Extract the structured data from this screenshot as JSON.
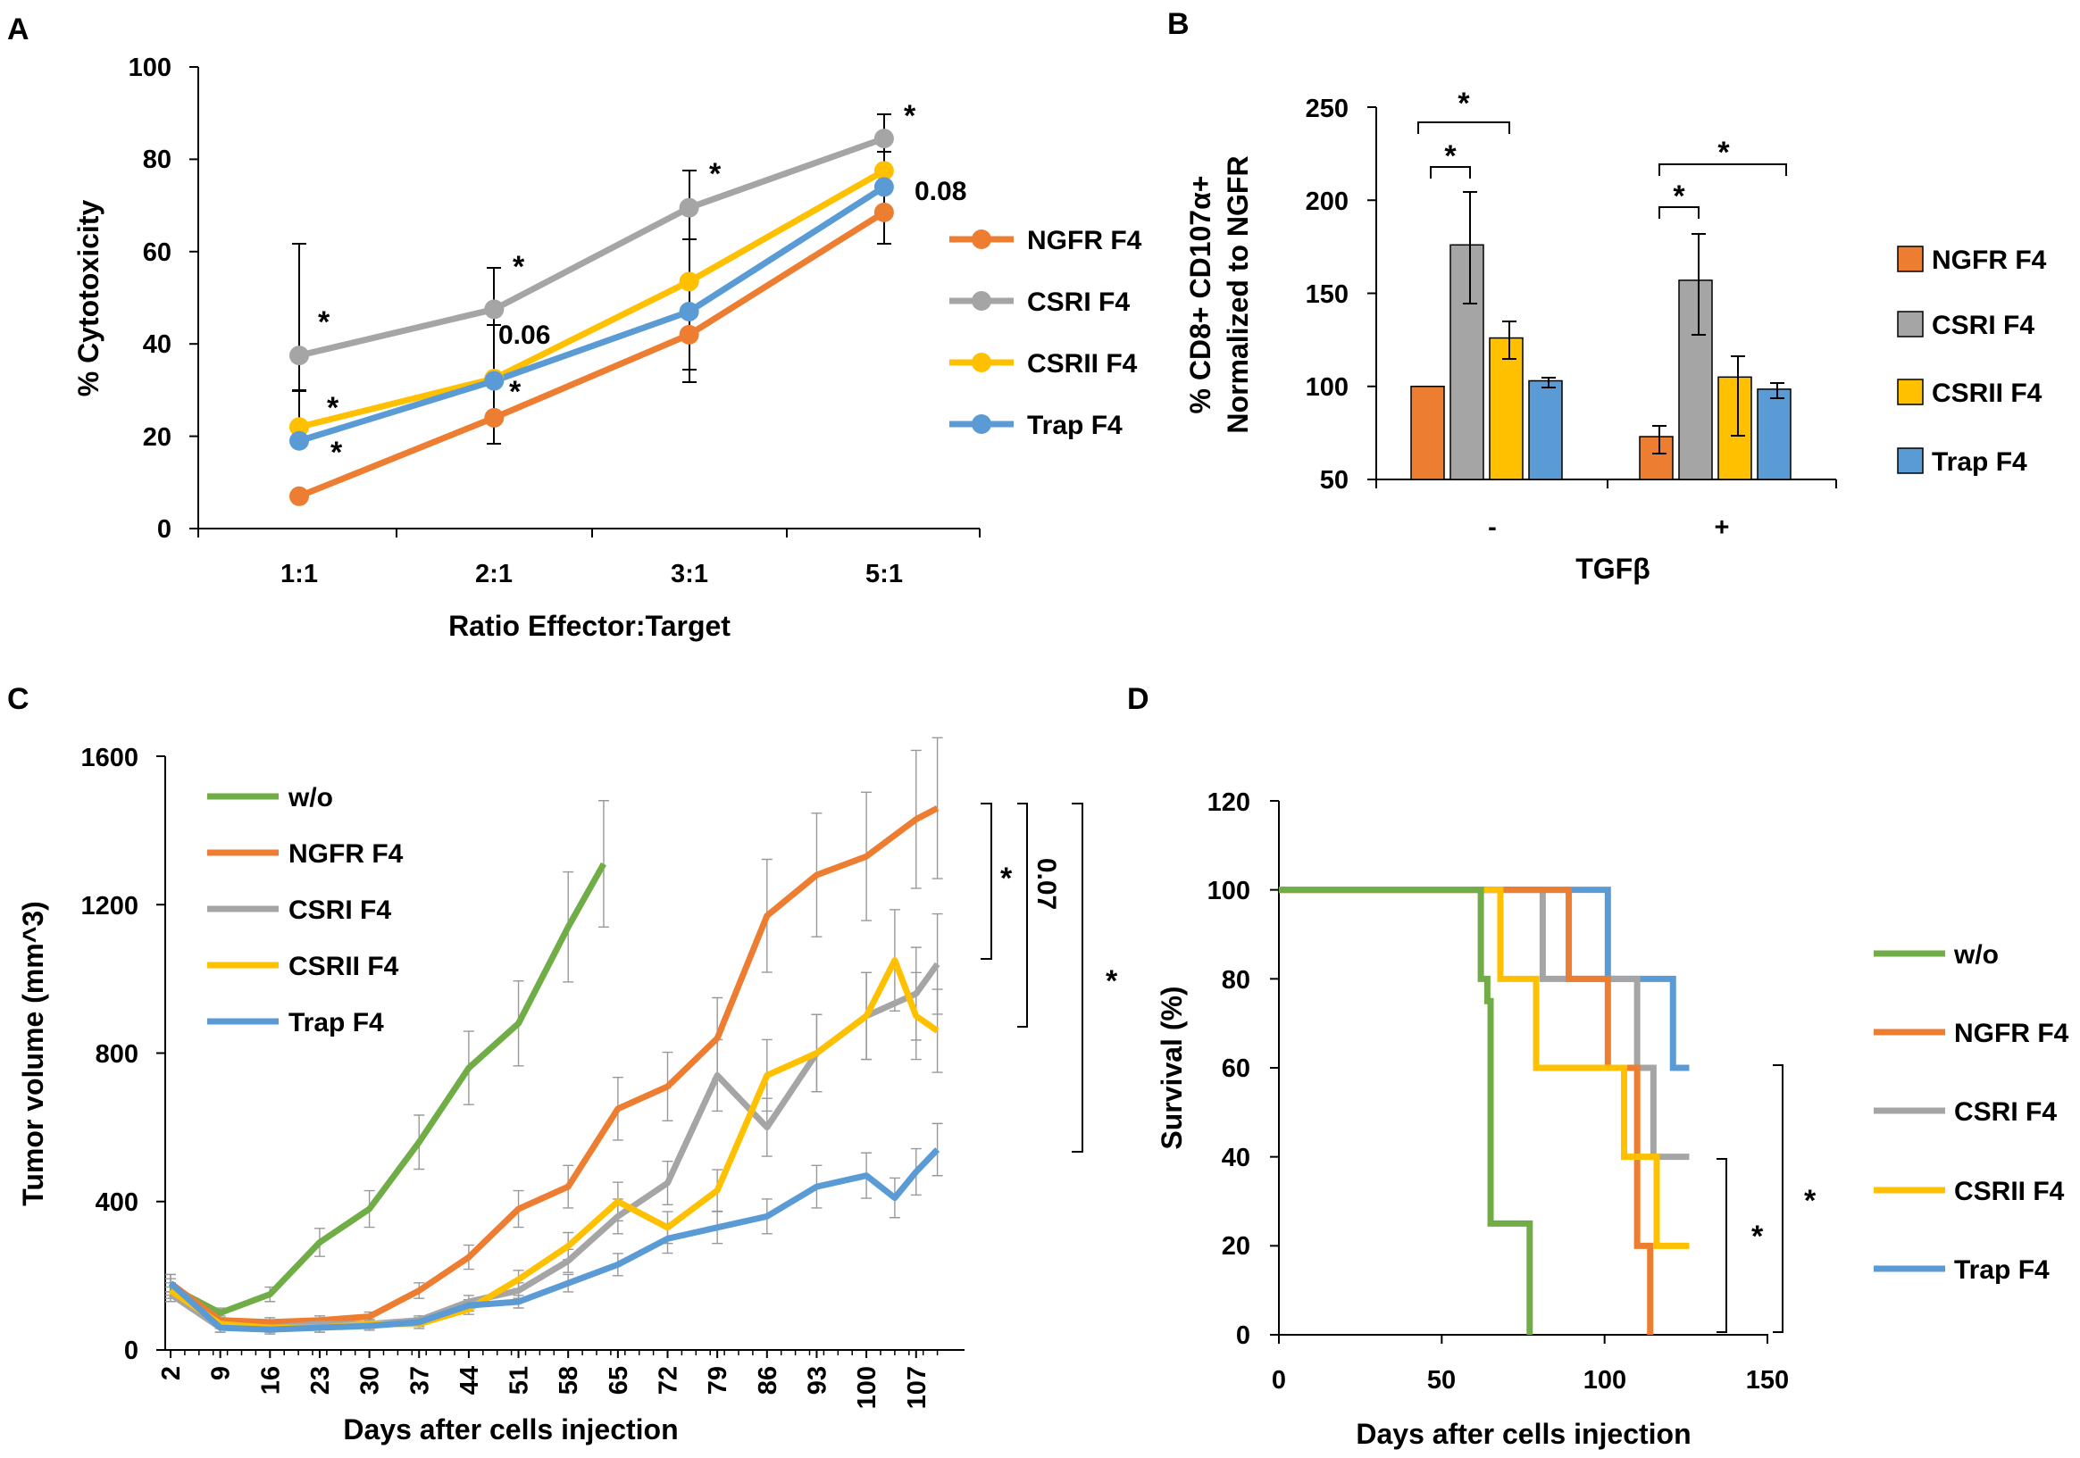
{
  "colors": {
    "ngfr": "#ED7D31",
    "csri": "#A5A5A5",
    "csrii": "#FFC000",
    "trap": "#5B9BD5",
    "wo": "#70AD47"
  },
  "chart_data": [
    {
      "panel": "A",
      "type": "line",
      "xlabel": "Ratio Effector:Target",
      "ylabel": "% Cytotoxicity",
      "categories": [
        "1:1",
        "2:1",
        "3:1",
        "5:1"
      ],
      "ylim": [
        0,
        100
      ],
      "yticks": [
        "0",
        "20",
        "40",
        "60",
        "80",
        "100"
      ],
      "series": [
        {
          "name": "NGFR F4",
          "values": [
            7,
            24,
            42,
            68.5
          ]
        },
        {
          "name": "CSRI F4",
          "values": [
            37.5,
            47.5,
            69.5,
            84.5
          ]
        },
        {
          "name": "CSRII F4",
          "values": [
            22,
            32.5,
            53.5,
            77.5
          ]
        },
        {
          "name": "Trap F4",
          "values": [
            19,
            32,
            47,
            74
          ]
        }
      ],
      "annotations": [
        "*",
        "*",
        "*",
        "*",
        "*",
        "0.06",
        "*",
        "0.08",
        "*"
      ]
    },
    {
      "panel": "B",
      "type": "bar",
      "xlabel": "TGFβ",
      "ylabel_line1": "% CD8+ CD107α+",
      "ylabel_line2": "Normalized to NGFR",
      "categories": [
        "-",
        "+"
      ],
      "ylim": [
        50,
        250
      ],
      "yticks": [
        "50",
        "100",
        "150",
        "200",
        "250"
      ],
      "series": [
        {
          "name": "NGFR F4",
          "values": [
            100,
            73
          ]
        },
        {
          "name": "CSRI F4",
          "values": [
            176,
            157
          ]
        },
        {
          "name": "CSRII F4",
          "values": [
            126,
            105
          ]
        },
        {
          "name": "Trap F4",
          "values": [
            103,
            98.5
          ]
        }
      ],
      "annotations": [
        "*",
        "*",
        "*",
        "*"
      ]
    },
    {
      "panel": "C",
      "type": "line",
      "xlabel": "Days after cells injection",
      "ylabel": "Tumor volume (mm^3)",
      "xticks": [
        "2",
        "9",
        "16",
        "23",
        "30",
        "37",
        "44",
        "51",
        "58",
        "65",
        "72",
        "79",
        "86",
        "93",
        "100",
        "107"
      ],
      "ylim": [
        0,
        1600
      ],
      "yticks": [
        "0",
        "400",
        "800",
        "1200",
        "1600"
      ],
      "series": [
        {
          "name": "w/o",
          "days": [
            2,
            9,
            16,
            23,
            30,
            37,
            44,
            51,
            58,
            63
          ],
          "values": [
            170,
            100,
            150,
            290,
            380,
            560,
            760,
            880,
            1140,
            1310
          ]
        },
        {
          "name": "NGFR F4",
          "days": [
            2,
            9,
            16,
            23,
            30,
            37,
            44,
            51,
            58,
            65,
            72,
            79,
            86,
            93,
            100,
            107,
            110
          ],
          "values": [
            180,
            80,
            75,
            80,
            90,
            160,
            250,
            380,
            440,
            650,
            710,
            840,
            1170,
            1280,
            1330,
            1430,
            1460
          ]
        },
        {
          "name": "CSRI F4",
          "days": [
            2,
            9,
            16,
            23,
            30,
            37,
            44,
            51,
            58,
            65,
            72,
            79,
            86,
            93,
            100,
            107,
            110
          ],
          "values": [
            150,
            60,
            60,
            70,
            70,
            80,
            130,
            160,
            240,
            360,
            450,
            740,
            600,
            800,
            900,
            960,
            1040
          ]
        },
        {
          "name": "CSRII F4",
          "days": [
            2,
            9,
            16,
            23,
            30,
            37,
            44,
            51,
            58,
            65,
            72,
            79,
            86,
            93,
            100,
            104,
            107,
            110
          ],
          "values": [
            160,
            70,
            60,
            60,
            70,
            70,
            110,
            190,
            280,
            400,
            330,
            430,
            740,
            800,
            900,
            1050,
            900,
            860
          ]
        },
        {
          "name": "Trap F4",
          "days": [
            2,
            9,
            16,
            23,
            30,
            37,
            44,
            51,
            58,
            65,
            72,
            79,
            86,
            93,
            100,
            104,
            107,
            110
          ],
          "values": [
            180,
            60,
            55,
            60,
            65,
            75,
            120,
            130,
            180,
            230,
            300,
            330,
            360,
            440,
            470,
            410,
            480,
            540
          ]
        }
      ],
      "annotations": [
        "*",
        "0.07",
        "*"
      ]
    },
    {
      "panel": "D",
      "type": "line",
      "xlabel": "Days after cells injection",
      "ylabel": "Survival (%)",
      "xticks": [
        "0",
        "50",
        "100",
        "150"
      ],
      "xlim": [
        0,
        150
      ],
      "ylim": [
        0,
        120
      ],
      "yticks": [
        "0",
        "20",
        "40",
        "60",
        "80",
        "100",
        "120"
      ],
      "series": [
        {
          "name": "w/o",
          "x": [
            0,
            62,
            62,
            64,
            64,
            65,
            65,
            77,
            77
          ],
          "values": [
            100,
            100,
            80,
            80,
            75,
            75,
            25,
            25,
            0
          ]
        },
        {
          "name": "NGFR F4",
          "x": [
            0,
            89,
            89,
            101,
            101,
            110,
            110,
            114,
            114
          ],
          "values": [
            100,
            100,
            80,
            80,
            60,
            60,
            20,
            20,
            0
          ]
        },
        {
          "name": "CSRI F4",
          "x": [
            0,
            81,
            81,
            110,
            110,
            115,
            115,
            126
          ],
          "values": [
            100,
            100,
            80,
            80,
            60,
            60,
            40,
            40
          ]
        },
        {
          "name": "CSRII F4",
          "x": [
            0,
            68,
            68,
            79,
            79,
            106,
            106,
            116,
            116,
            126
          ],
          "values": [
            100,
            100,
            80,
            80,
            60,
            60,
            40,
            40,
            20,
            20
          ]
        },
        {
          "name": "Trap F4",
          "x": [
            0,
            101,
            101,
            121,
            121,
            126
          ],
          "values": [
            100,
            100,
            80,
            80,
            60,
            60
          ]
        }
      ],
      "annotations": [
        "*",
        "*"
      ]
    }
  ]
}
